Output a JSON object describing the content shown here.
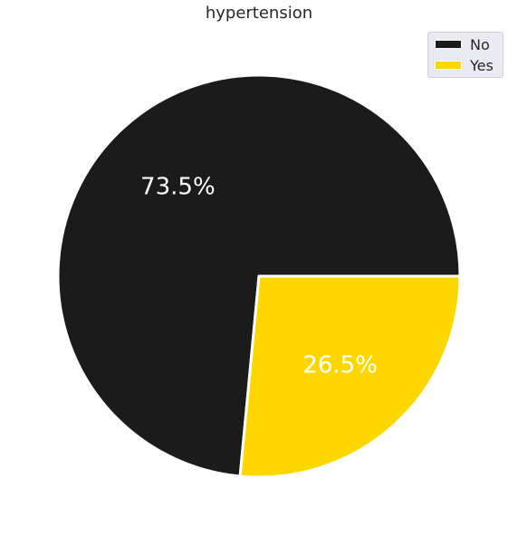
{
  "chart_data": {
    "type": "pie",
    "title": "hypertension",
    "legend_position": "top-right",
    "slices": [
      {
        "label": "No",
        "value": 73.5,
        "display": "73.5%",
        "color": "#1b1b1b"
      },
      {
        "label": "Yes",
        "value": 26.5,
        "display": "26.5%",
        "color": "#ffd700"
      }
    ]
  }
}
